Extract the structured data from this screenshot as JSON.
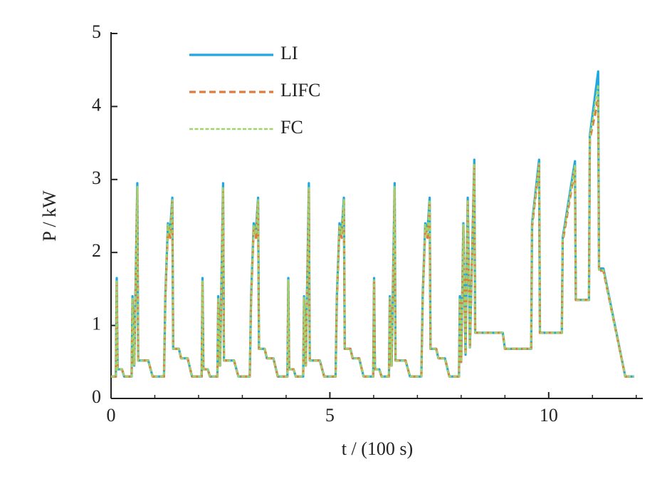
{
  "chart_data": {
    "type": "line",
    "xlabel": "t / (100 s)",
    "ylabel": "P / kW",
    "xlim": [
      0,
      12.15
    ],
    "ylim": [
      0,
      5
    ],
    "xticks": [
      0,
      5,
      10
    ],
    "xminorticks": [
      1,
      2,
      3,
      4,
      6,
      7,
      8,
      9,
      11,
      12
    ],
    "yticks": [
      0,
      1,
      2,
      3,
      4,
      5
    ],
    "grid": false,
    "legend": "upper left",
    "x": [
      0,
      0.11,
      0.13,
      0.15,
      0.25,
      0.3,
      0.47,
      0.49,
      0.53,
      0.6,
      0.62,
      0.85,
      0.95,
      1.21,
      1.24,
      1.3,
      1.35,
      1.4,
      1.42,
      1.55,
      1.6,
      1.75,
      1.85,
      1.96,
      2.07,
      2.09,
      2.11,
      2.21,
      2.26,
      2.43,
      2.45,
      2.49,
      2.56,
      2.58,
      2.81,
      2.91,
      3.17,
      3.2,
      3.26,
      3.31,
      3.36,
      3.38,
      3.51,
      3.56,
      3.71,
      3.81,
      3.92,
      4.03,
      4.05,
      4.07,
      4.17,
      4.22,
      4.39,
      4.41,
      4.45,
      4.52,
      4.54,
      4.77,
      4.87,
      5.13,
      5.16,
      5.22,
      5.27,
      5.32,
      5.34,
      5.47,
      5.52,
      5.67,
      5.77,
      5.88,
      5.99,
      6.01,
      6.03,
      6.13,
      6.18,
      6.35,
      6.37,
      6.41,
      6.48,
      6.5,
      6.73,
      6.83,
      7.09,
      7.12,
      7.18,
      7.23,
      7.28,
      7.3,
      7.43,
      7.48,
      7.63,
      7.73,
      7.95,
      7.97,
      8.0,
      8.05,
      8.1,
      8.15,
      8.2,
      8.3,
      8.32,
      8.95,
      9.0,
      9.6,
      9.62,
      9.78,
      9.8,
      10.3,
      10.32,
      10.6,
      10.62,
      10.92,
      10.94,
      11.13,
      11.15,
      11.25,
      11.75,
      11.95
    ],
    "series": [
      {
        "name": "LI",
        "color": "#1ea7e0",
        "linestyle": "solid",
        "values": [
          0.3,
          0.3,
          1.65,
          0.4,
          0.4,
          0.3,
          0.3,
          1.4,
          0.45,
          2.95,
          0.52,
          0.52,
          0.3,
          0.3,
          1.4,
          2.4,
          2.3,
          2.75,
          0.68,
          0.68,
          0.55,
          0.55,
          0.3,
          0.3,
          0.3,
          1.65,
          0.4,
          0.4,
          0.3,
          0.3,
          1.4,
          0.45,
          2.95,
          0.52,
          0.52,
          0.3,
          0.3,
          1.4,
          2.4,
          2.3,
          2.75,
          0.68,
          0.68,
          0.55,
          0.55,
          0.3,
          0.3,
          0.3,
          1.65,
          0.4,
          0.4,
          0.3,
          0.3,
          1.4,
          0.45,
          2.95,
          0.52,
          0.52,
          0.3,
          0.3,
          1.4,
          2.4,
          2.3,
          2.75,
          0.68,
          0.68,
          0.55,
          0.55,
          0.3,
          0.3,
          0.3,
          1.65,
          0.4,
          0.4,
          0.3,
          0.3,
          1.4,
          0.45,
          2.95,
          0.52,
          0.52,
          0.3,
          0.3,
          1.4,
          2.4,
          2.3,
          2.75,
          0.68,
          0.68,
          0.55,
          0.55,
          0.3,
          0.3,
          1.4,
          0.5,
          2.4,
          0.6,
          2.75,
          0.7,
          3.27,
          0.9,
          0.9,
          0.68,
          0.68,
          2.4,
          3.27,
          0.9,
          0.9,
          2.2,
          3.25,
          1.35,
          1.35,
          3.6,
          4.48,
          1.78,
          1.78,
          0.3,
          0.3
        ]
      },
      {
        "name": "LIFC",
        "color": "#e07b39",
        "linestyle": "dashed",
        "values": [
          0.3,
          0.3,
          1.6,
          0.4,
          0.4,
          0.3,
          0.3,
          1.35,
          0.45,
          2.85,
          0.52,
          0.52,
          0.3,
          0.3,
          1.35,
          2.35,
          2.2,
          2.7,
          0.68,
          0.68,
          0.55,
          0.55,
          0.3,
          0.3,
          0.3,
          1.6,
          0.4,
          0.4,
          0.3,
          0.3,
          1.35,
          0.45,
          2.85,
          0.52,
          0.52,
          0.3,
          0.3,
          1.35,
          2.35,
          2.2,
          2.7,
          0.68,
          0.68,
          0.55,
          0.55,
          0.3,
          0.3,
          0.3,
          1.6,
          0.4,
          0.4,
          0.3,
          0.3,
          1.35,
          0.45,
          2.85,
          0.52,
          0.52,
          0.3,
          0.3,
          1.35,
          2.35,
          2.2,
          2.7,
          0.68,
          0.68,
          0.55,
          0.55,
          0.3,
          0.3,
          0.3,
          1.6,
          0.4,
          0.4,
          0.3,
          0.3,
          1.35,
          0.45,
          2.85,
          0.52,
          0.52,
          0.3,
          0.3,
          1.35,
          2.35,
          2.2,
          2.7,
          0.68,
          0.68,
          0.55,
          0.55,
          0.3,
          0.3,
          1.35,
          0.5,
          2.35,
          0.6,
          2.7,
          0.7,
          3.2,
          0.9,
          0.9,
          0.68,
          0.68,
          2.35,
          3.2,
          0.9,
          0.9,
          2.15,
          3.15,
          1.35,
          1.35,
          3.55,
          4.1,
          1.75,
          1.75,
          0.3,
          0.3
        ]
      },
      {
        "name": "FC",
        "color": "#9fd36b",
        "linestyle": "dotted",
        "values": [
          0.3,
          0.3,
          1.62,
          0.4,
          0.4,
          0.3,
          0.3,
          1.38,
          0.45,
          2.9,
          0.52,
          0.52,
          0.3,
          0.3,
          1.38,
          2.38,
          2.25,
          2.72,
          0.68,
          0.68,
          0.55,
          0.55,
          0.3,
          0.3,
          0.3,
          1.62,
          0.4,
          0.4,
          0.3,
          0.3,
          1.38,
          0.45,
          2.9,
          0.52,
          0.52,
          0.3,
          0.3,
          1.38,
          2.38,
          2.25,
          2.72,
          0.68,
          0.68,
          0.55,
          0.55,
          0.3,
          0.3,
          0.3,
          1.62,
          0.4,
          0.4,
          0.3,
          0.3,
          1.38,
          0.45,
          2.9,
          0.52,
          0.52,
          0.3,
          0.3,
          1.38,
          2.38,
          2.25,
          2.72,
          0.68,
          0.68,
          0.55,
          0.55,
          0.3,
          0.3,
          0.3,
          1.62,
          0.4,
          0.4,
          0.3,
          0.3,
          1.38,
          0.45,
          2.9,
          0.52,
          0.52,
          0.3,
          0.3,
          1.38,
          2.38,
          2.25,
          2.72,
          0.68,
          0.68,
          0.55,
          0.55,
          0.3,
          0.3,
          1.38,
          0.5,
          2.38,
          0.6,
          2.72,
          0.7,
          3.22,
          0.9,
          0.9,
          0.68,
          0.68,
          2.38,
          3.22,
          0.9,
          0.9,
          2.18,
          3.2,
          1.35,
          1.35,
          3.58,
          4.3,
          1.76,
          1.76,
          0.3,
          0.3
        ]
      }
    ]
  }
}
